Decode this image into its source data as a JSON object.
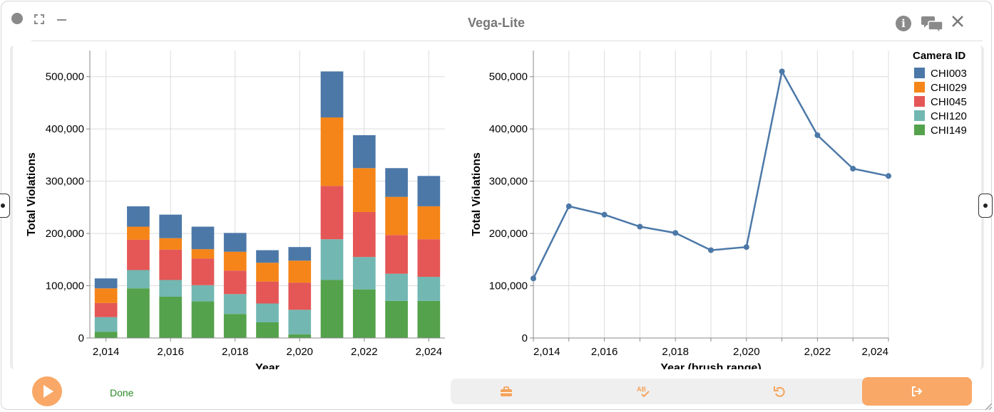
{
  "window": {
    "title": "Vega-Lite"
  },
  "icons": {
    "status_dot": "circle-icon",
    "expand": "expand-icon",
    "minimize": "minimize-icon",
    "info": "info-icon",
    "chat": "chat-icon",
    "close": "close-icon",
    "play": "play-icon",
    "toolkit": "toolbox-icon",
    "spellcheck": "spellcheck-icon",
    "undo": "undo-icon",
    "exit": "exit-icon"
  },
  "info_glyph": "i",
  "bottom": {
    "status": "Done"
  },
  "colors": {
    "accent": "#f9a867",
    "CHI003": "#4c78a8",
    "CHI029": "#f58518",
    "CHI045": "#e45756",
    "CHI120": "#72b7b2",
    "CHI149": "#54a24b",
    "line": "#4c78a8"
  },
  "chart_data": [
    {
      "type": "bar",
      "stacked": true,
      "xlabel": "Year",
      "ylabel": "Total Violations",
      "ylim": [
        0,
        550000
      ],
      "yticks": [
        0,
        100000,
        200000,
        300000,
        400000,
        500000
      ],
      "xtick_labels": [
        "2,014",
        "2,016",
        "2,018",
        "2,020",
        "2,022",
        "2,024"
      ],
      "categories": [
        2014,
        2015,
        2016,
        2017,
        2018,
        2019,
        2020,
        2021,
        2022,
        2023,
        2024
      ],
      "grid": true,
      "series": [
        {
          "name": "CHI149",
          "values": [
            12000,
            95000,
            79000,
            70000,
            46000,
            30000,
            7000,
            111000,
            93000,
            71000,
            71000
          ]
        },
        {
          "name": "CHI120",
          "values": [
            28000,
            35000,
            32000,
            31000,
            38000,
            36000,
            47000,
            78000,
            62000,
            52000,
            46000
          ]
        },
        {
          "name": "CHI045",
          "values": [
            27000,
            58000,
            58000,
            51000,
            45000,
            42000,
            52000,
            102000,
            86000,
            74000,
            72000
          ]
        },
        {
          "name": "CHI029",
          "values": [
            28000,
            25000,
            22000,
            18000,
            36000,
            36000,
            42000,
            131000,
            84000,
            73000,
            63000
          ]
        },
        {
          "name": "CHI003",
          "values": [
            19000,
            39000,
            45000,
            43000,
            36000,
            24000,
            26000,
            88000,
            63000,
            55000,
            58000
          ]
        }
      ]
    },
    {
      "type": "line",
      "xlabel": "Year (brush range)",
      "ylabel": "Total Violations",
      "ylim": [
        0,
        550000
      ],
      "xlim": [
        2014,
        2024
      ],
      "yticks": [
        0,
        100000,
        200000,
        300000,
        400000,
        500000
      ],
      "xtick_labels": [
        "2,014",
        "2,016",
        "2,018",
        "2,020",
        "2,022",
        "2,024"
      ],
      "grid": true,
      "x": [
        2014,
        2015,
        2016,
        2017,
        2018,
        2019,
        2020,
        2021,
        2022,
        2023,
        2024
      ],
      "y": [
        114000,
        252000,
        236000,
        213000,
        201000,
        168000,
        174000,
        510000,
        388000,
        324000,
        310000
      ]
    }
  ],
  "legend": {
    "title": "Camera ID",
    "placement": "right",
    "items": [
      "CHI003",
      "CHI029",
      "CHI045",
      "CHI120",
      "CHI149"
    ]
  }
}
